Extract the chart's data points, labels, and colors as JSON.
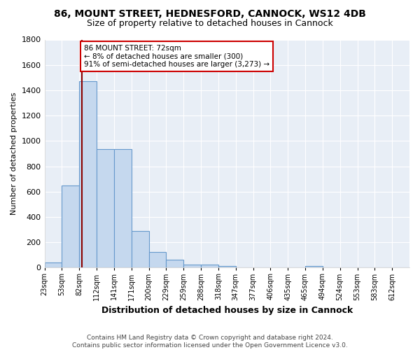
{
  "title_line1": "86, MOUNT STREET, HEDNESFORD, CANNOCK, WS12 4DB",
  "title_line2": "Size of property relative to detached houses in Cannock",
  "xlabel": "Distribution of detached houses by size in Cannock",
  "ylabel": "Number of detached properties",
  "footnote": "Contains HM Land Registry data © Crown copyright and database right 2024.\nContains public sector information licensed under the Open Government Licence v3.0.",
  "bin_labels": [
    "23sqm",
    "53sqm",
    "82sqm",
    "112sqm",
    "141sqm",
    "171sqm",
    "200sqm",
    "229sqm",
    "259sqm",
    "288sqm",
    "318sqm",
    "347sqm",
    "377sqm",
    "406sqm",
    "435sqm",
    "465sqm",
    "494sqm",
    "524sqm",
    "553sqm",
    "583sqm",
    "612sqm"
  ],
  "bar_heights": [
    38,
    650,
    1470,
    935,
    935,
    290,
    125,
    62,
    25,
    25,
    15,
    0,
    0,
    0,
    0,
    15,
    0,
    0,
    0,
    0,
    0
  ],
  "bar_color": "#c5d8ee",
  "bar_edge_color": "#6699cc",
  "annotation_text": "86 MOUNT STREET: 72sqm\n← 8% of detached houses are smaller (300)\n91% of semi-detached houses are larger (3,273) →",
  "vline_x_bin": 2,
  "vline_color": "#8b0000",
  "annotation_box_color": "#ffffff",
  "annotation_box_edge": "#cc0000",
  "ylim": [
    0,
    1800
  ],
  "bin_count": 21,
  "property_sqm": 72
}
